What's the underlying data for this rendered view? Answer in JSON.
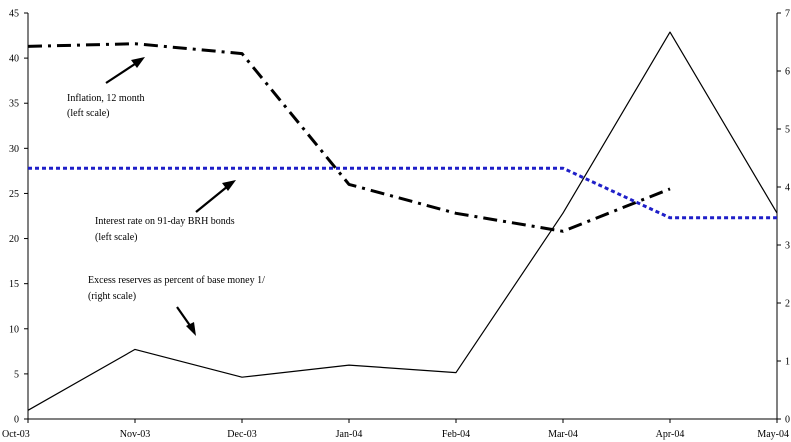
{
  "chart_data": {
    "type": "line",
    "categories": [
      "Oct-03",
      "Nov-03",
      "Dec-03",
      "Jan-04",
      "Feb-04",
      "Mar-04",
      "Apr-04",
      "May-04"
    ],
    "y_left": {
      "min": 0,
      "max": 45,
      "ticks": [
        0,
        5,
        10,
        15,
        20,
        25,
        30,
        35,
        40,
        45
      ]
    },
    "y_right": {
      "min": 0,
      "max": 7,
      "ticks": [
        0,
        1,
        2,
        3,
        4,
        5,
        6,
        7
      ]
    },
    "series": [
      {
        "axis": "left",
        "style": "dash-dot",
        "color": "#000000",
        "points": [
          [
            0,
            41.3
          ],
          [
            1,
            41.6
          ],
          [
            2,
            40.5
          ],
          [
            3,
            26.0
          ],
          [
            4,
            22.8
          ],
          [
            5,
            20.8
          ],
          [
            6,
            25.5
          ]
        ]
      },
      {
        "axis": "left",
        "style": "dotted",
        "color": "#1f1fc8",
        "points": [
          [
            0,
            27.8
          ],
          [
            1,
            27.8
          ],
          [
            2,
            27.8
          ],
          [
            3,
            27.8
          ],
          [
            4,
            27.8
          ],
          [
            5,
            27.8
          ],
          [
            6,
            22.3
          ],
          [
            7,
            22.3
          ]
        ]
      },
      {
        "axis": "right",
        "style": "solid",
        "color": "#000000",
        "points": [
          [
            0,
            0.15
          ],
          [
            1,
            1.2
          ],
          [
            2,
            0.72
          ],
          [
            3,
            0.93
          ],
          [
            4,
            0.8
          ],
          [
            5,
            3.55
          ],
          [
            6,
            6.67
          ],
          [
            7,
            3.55
          ]
        ]
      }
    ],
    "annotations": [
      {
        "lines": [
          "Inflation, 12 month",
          "(left scale)"
        ]
      },
      {
        "lines": [
          "Interest rate on 91-day BRH bonds",
          "(left scale)"
        ]
      },
      {
        "lines": [
          "Excess reserves as percent of base money 1/",
          "(right scale)"
        ]
      }
    ],
    "grid": false,
    "legend": "none"
  }
}
